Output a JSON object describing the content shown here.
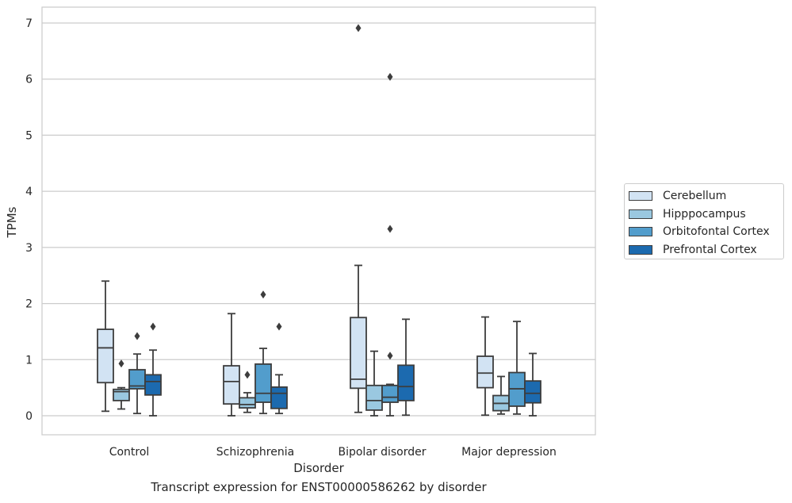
{
  "chart_data": {
    "type": "boxplot",
    "xlabel": "Disorder",
    "ylabel": "TPMs",
    "caption": "Transcript expression for ENST00000586262 by disorder",
    "ylim": [
      -0.35,
      7.3
    ],
    "yticks": [
      0,
      1,
      2,
      3,
      4,
      5,
      6,
      7
    ],
    "grid": "horizontal",
    "legend_position": "right",
    "categories": [
      "Control",
      "Schizophrenia",
      "Bipolar disorder",
      "Major depression"
    ],
    "series": [
      {
        "name": "Cerebellum",
        "color": "#d2e3f3",
        "boxes": [
          {
            "whislo": 0.08,
            "q1": 0.59,
            "med": 1.21,
            "q3": 1.54,
            "whishi": 2.4,
            "fliers": []
          },
          {
            "whislo": 0.0,
            "q1": 0.21,
            "med": 0.61,
            "q3": 0.89,
            "whishi": 1.82,
            "fliers": []
          },
          {
            "whislo": 0.06,
            "q1": 0.49,
            "med": 0.65,
            "q3": 1.75,
            "whishi": 2.68,
            "fliers": []
          },
          {
            "whislo": 0.01,
            "q1": 0.5,
            "med": 0.76,
            "q3": 1.06,
            "whishi": 1.76,
            "fliers": []
          }
        ]
      },
      {
        "name": "Hipppocampus",
        "color": "#9ac8e0",
        "boxes": [
          {
            "whislo": 0.12,
            "q1": 0.27,
            "med": 0.43,
            "q3": 0.47,
            "whishi": 0.5,
            "fliers": [
              0.93
            ]
          },
          {
            "whislo": 0.06,
            "q1": 0.14,
            "med": 0.2,
            "q3": 0.32,
            "whishi": 0.41,
            "fliers": [
              0.73
            ]
          },
          {
            "whislo": 0.0,
            "q1": 0.1,
            "med": 0.27,
            "q3": 0.54,
            "whishi": 1.15,
            "fliers": []
          },
          {
            "whislo": 0.03,
            "q1": 0.09,
            "med": 0.22,
            "q3": 0.36,
            "whishi": 0.7,
            "fliers": []
          }
        ]
      },
      {
        "name": "Orbitofontal Cortex",
        "color": "#529dcc",
        "boxes": [
          {
            "whislo": 0.04,
            "q1": 0.48,
            "med": 0.53,
            "q3": 0.82,
            "whishi": 1.1,
            "fliers": [
              1.42
            ]
          },
          {
            "whislo": 0.04,
            "q1": 0.24,
            "med": 0.4,
            "q3": 0.92,
            "whishi": 1.2,
            "fliers": [
              2.16
            ]
          },
          {
            "whislo": 0.0,
            "q1": 0.24,
            "med": 0.33,
            "q3": 0.54,
            "whishi": 0.56,
            "fliers": [
              1.07,
              3.33,
              6.04
            ]
          },
          {
            "whislo": 0.03,
            "q1": 0.17,
            "med": 0.48,
            "q3": 0.77,
            "whishi": 1.68,
            "fliers": []
          }
        ]
      },
      {
        "name": "Prefrontal Cortex",
        "color": "#1c6aaf",
        "boxes": [
          {
            "whislo": 0.0,
            "q1": 0.37,
            "med": 0.61,
            "q3": 0.73,
            "whishi": 1.17,
            "fliers": [
              1.59
            ]
          },
          {
            "whislo": 0.04,
            "q1": 0.13,
            "med": 0.4,
            "q3": 0.51,
            "whishi": 0.73,
            "fliers": [
              1.59
            ]
          },
          {
            "whislo": 0.01,
            "q1": 0.27,
            "med": 0.52,
            "q3": 0.9,
            "whishi": 1.72,
            "fliers": []
          },
          {
            "whislo": 0.0,
            "q1": 0.23,
            "med": 0.4,
            "q3": 0.62,
            "whishi": 1.11,
            "fliers": []
          }
        ]
      }
    ],
    "extra_fliers": [
      {
        "category": "Bipolar disorder",
        "series": "Cerebellum",
        "value": 6.91
      }
    ]
  }
}
